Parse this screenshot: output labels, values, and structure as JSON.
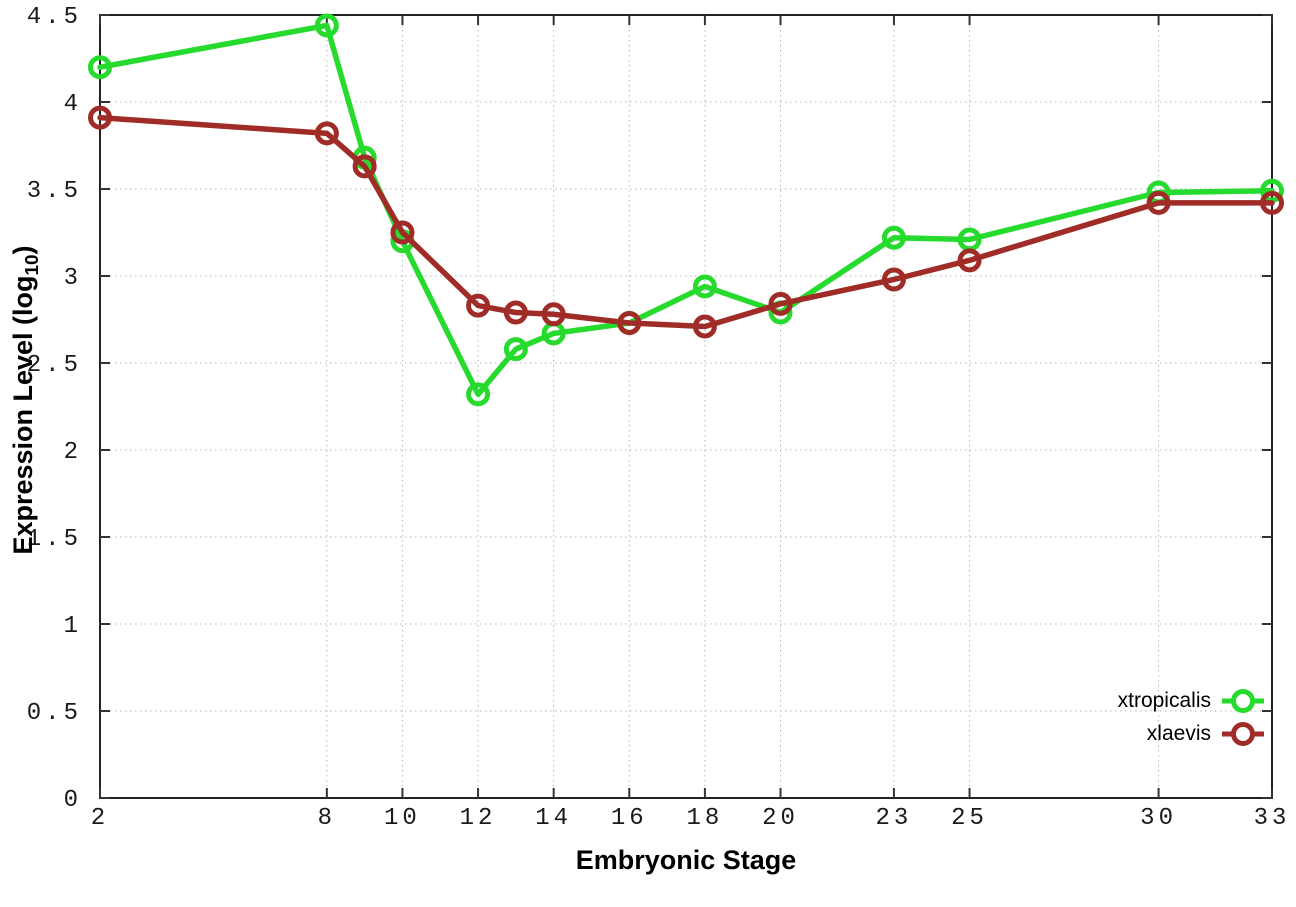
{
  "chart_data": {
    "type": "line",
    "title": "",
    "xlabel": "Embryonic Stage",
    "ylabel": "Expression Level (log10)",
    "ylabel_parts": {
      "main": "Expression Level (log",
      "sub": "10",
      "close": ")"
    },
    "x": [
      2,
      8,
      9,
      10,
      12,
      13,
      14,
      16,
      18,
      20,
      23,
      25,
      30,
      33
    ],
    "series": [
      {
        "name": "xtropicalis",
        "color": "#26da2e",
        "values": [
          4.2,
          4.44,
          3.68,
          3.2,
          2.32,
          2.58,
          2.67,
          2.73,
          2.94,
          2.79,
          3.22,
          3.21,
          3.48,
          3.49
        ]
      },
      {
        "name": "xlaevis",
        "color": "#a02c27",
        "values": [
          3.91,
          3.82,
          3.63,
          3.25,
          2.83,
          2.79,
          2.78,
          2.73,
          2.71,
          2.84,
          2.98,
          3.09,
          3.42,
          3.42
        ]
      }
    ],
    "xticks": {
      "values": [
        2,
        8,
        10,
        12,
        14,
        16,
        18,
        20,
        23,
        25,
        30,
        33
      ],
      "labels": [
        "2",
        "8",
        "10",
        "12",
        "14",
        "16",
        "18",
        "20",
        "23",
        "25",
        "30",
        "33"
      ]
    },
    "yticks": {
      "values": [
        0,
        0.5,
        1,
        1.5,
        2,
        2.5,
        3,
        3.5,
        4,
        4.5
      ],
      "labels": [
        "0",
        "0.5",
        "1",
        "1.5",
        "2",
        "2.5",
        "3",
        "3.5",
        "4",
        "4.5"
      ]
    },
    "xlim": [
      2,
      33
    ],
    "ylim": [
      0,
      4.5
    ],
    "grid": true,
    "marker": "open-circle",
    "legend_position": "bottom-right-inside",
    "colors": {
      "background": "#ffffff",
      "grid": "#b8b8b8",
      "axis": "#222222",
      "text": "#1a1a1a"
    }
  }
}
